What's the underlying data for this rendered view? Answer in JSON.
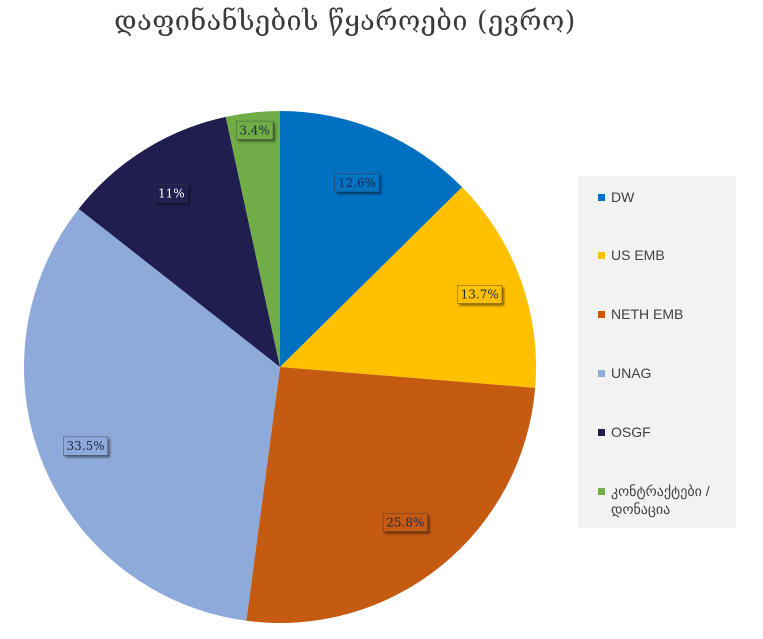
{
  "chart_data": {
    "type": "pie",
    "title": "დაფინანსების წყაროები (ევრო)",
    "slices": [
      {
        "name": "DW",
        "value": 12.6,
        "label": "12.6%",
        "color": "#0070c0"
      },
      {
        "name": "US EMB",
        "value": 13.7,
        "label": "13.7%",
        "color": "#ffc000"
      },
      {
        "name": "NETH EMB",
        "value": 25.8,
        "label": "25.8%",
        "color": "#c55a11"
      },
      {
        "name": "UNAG",
        "value": 33.5,
        "label": "33.5%",
        "color": "#8eaadb"
      },
      {
        "name": "OSGF",
        "value": 11,
        "label": "11%",
        "color": "#201d4f"
      },
      {
        "name": "კონტრაქტები / დონაცია",
        "value": 3.4,
        "label": "3.4%",
        "color": "#70ad47"
      }
    ],
    "legend_position": "right",
    "start_angle": "top",
    "direction": "clockwise"
  }
}
